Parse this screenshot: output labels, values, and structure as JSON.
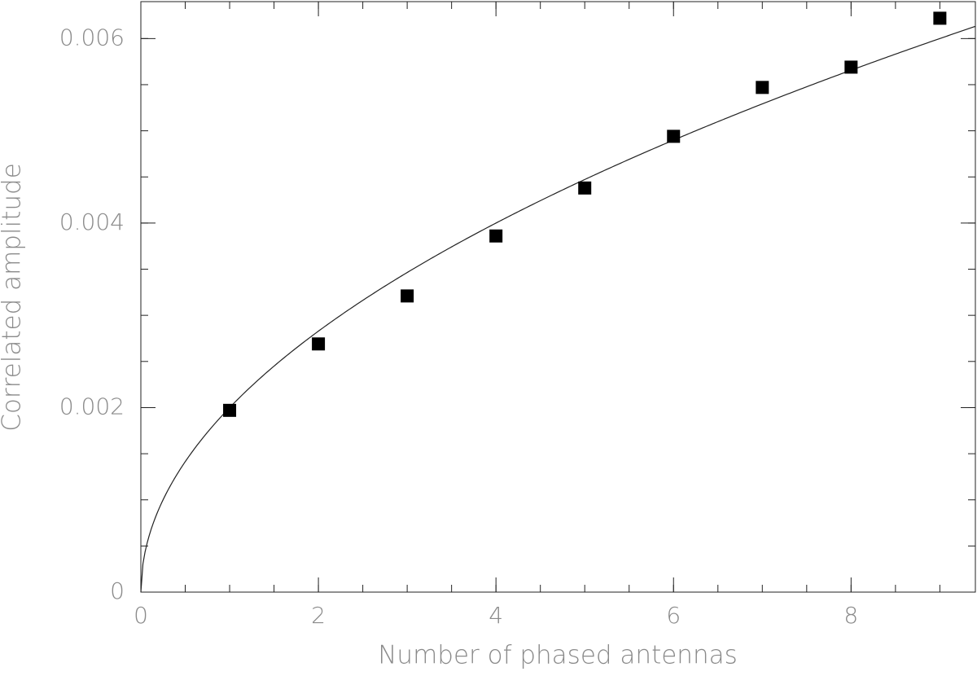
{
  "chart_data": {
    "type": "scatter",
    "x_label": "Number of phased antennas",
    "y_label": "Correlated amplitude",
    "x": [
      1,
      2,
      3,
      4,
      5,
      6,
      7,
      8,
      9
    ],
    "values": [
      0.00197,
      0.00269,
      0.00321,
      0.00386,
      0.00438,
      0.00494,
      0.00547,
      0.00569,
      0.00622
    ],
    "color": "#000000",
    "fit": {
      "function": "sqrt",
      "coefficient": 0.002
    },
    "xlim": [
      0,
      9.4
    ],
    "ylim": [
      0,
      0.0064
    ],
    "xticks": [
      0,
      2,
      4,
      6,
      8
    ],
    "yticks": [
      0,
      0.002,
      0.004,
      0.006
    ],
    "minor_tick_step": {
      "x": 0.5,
      "y": 0.0005
    },
    "grid": false
  }
}
